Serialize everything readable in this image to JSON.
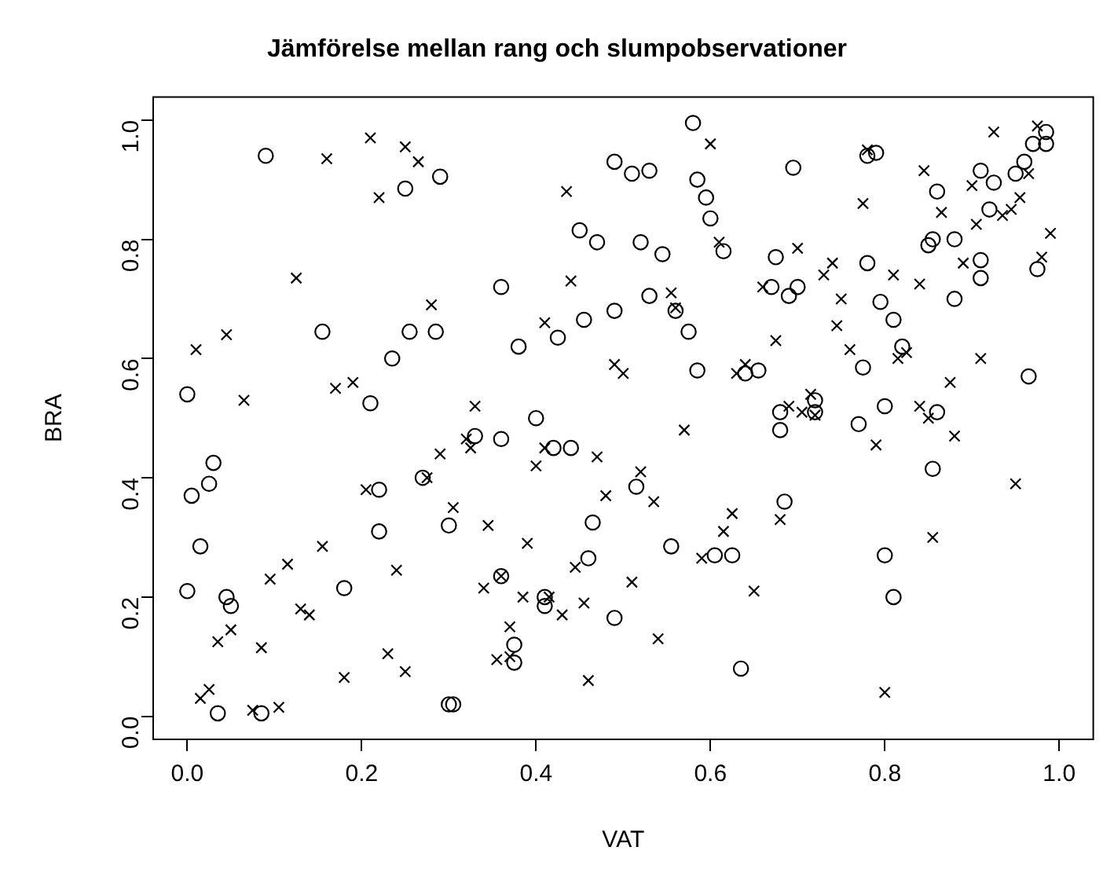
{
  "chart_data": {
    "type": "scatter",
    "title": "Jämförelse mellan rang och slumpobservationer",
    "xlabel": "VAT",
    "ylabel": "BRA",
    "xlim": [
      -0.04,
      1.04
    ],
    "ylim": [
      -0.04,
      1.04
    ],
    "xticks": [
      {
        "value": 0,
        "label": "0.0"
      },
      0.2,
      0.4,
      0.6,
      0.8,
      {
        "value": 1,
        "label": "1.0"
      }
    ],
    "yticks": [
      {
        "value": 0,
        "label": "0.0"
      },
      0.2,
      0.4,
      0.6,
      0.8,
      {
        "value": 1,
        "label": "1.0"
      }
    ],
    "grid": false,
    "legend": false,
    "series": [
      {
        "color": "#000000",
        "marker": "circle",
        "x": [
          0.0,
          0.0,
          0.005,
          0.015,
          0.025,
          0.03,
          0.035,
          0.045,
          0.05,
          0.085,
          0.09,
          0.155,
          0.18,
          0.21,
          0.22,
          0.22,
          0.235,
          0.25,
          0.255,
          0.27,
          0.29,
          0.285,
          0.3,
          0.3,
          0.305,
          0.33,
          0.36,
          0.36,
          0.36,
          0.375,
          0.375,
          0.38,
          0.4,
          0.41,
          0.41,
          0.42,
          0.425,
          0.44,
          0.45,
          0.455,
          0.46,
          0.465,
          0.47,
          0.49,
          0.49,
          0.49,
          0.51,
          0.515,
          0.52,
          0.53,
          0.53,
          0.545,
          0.555,
          0.56,
          0.575,
          0.58,
          0.585,
          0.585,
          0.595,
          0.6,
          0.605,
          0.615,
          0.625,
          0.635,
          0.64,
          0.655,
          0.67,
          0.675,
          0.68,
          0.68,
          0.685,
          0.69,
          0.695,
          0.7,
          0.72,
          0.72,
          0.77,
          0.775,
          0.78,
          0.78,
          0.79,
          0.795,
          0.8,
          0.81,
          0.8,
          0.81,
          0.82,
          0.85,
          0.855,
          0.855,
          0.86,
          0.86,
          0.88,
          0.88,
          0.91,
          0.91,
          0.91,
          0.92,
          0.925,
          0.95,
          0.96,
          0.965,
          0.97,
          0.975,
          0.985,
          0.985
        ],
        "values": [
          0.21,
          0.54,
          0.37,
          0.285,
          0.39,
          0.425,
          0.005,
          0.2,
          0.185,
          0.005,
          0.94,
          0.645,
          0.215,
          0.525,
          0.38,
          0.31,
          0.6,
          0.885,
          0.645,
          0.4,
          0.905,
          0.645,
          0.32,
          0.02,
          0.02,
          0.47,
          0.72,
          0.235,
          0.465,
          0.12,
          0.09,
          0.62,
          0.5,
          0.2,
          0.185,
          0.45,
          0.635,
          0.45,
          0.815,
          0.665,
          0.265,
          0.325,
          0.795,
          0.93,
          0.165,
          0.68,
          0.91,
          0.385,
          0.795,
          0.705,
          0.915,
          0.775,
          0.285,
          0.68,
          0.645,
          0.995,
          0.58,
          0.9,
          0.87,
          0.835,
          0.27,
          0.78,
          0.27,
          0.08,
          0.575,
          0.58,
          0.72,
          0.77,
          0.51,
          0.48,
          0.36,
          0.705,
          0.92,
          0.72,
          0.51,
          0.53,
          0.49,
          0.585,
          0.76,
          0.94,
          0.945,
          0.695,
          0.27,
          0.2,
          0.52,
          0.665,
          0.62,
          0.79,
          0.8,
          0.415,
          0.51,
          0.88,
          0.7,
          0.8,
          0.735,
          0.765,
          0.915,
          0.85,
          0.895,
          0.91,
          0.93,
          0.57,
          0.96,
          0.75,
          0.96,
          0.98
        ]
      },
      {
        "color": "#000000",
        "marker": "cross",
        "x": [
          0.01,
          0.015,
          0.025,
          0.035,
          0.045,
          0.05,
          0.065,
          0.075,
          0.085,
          0.095,
          0.105,
          0.115,
          0.125,
          0.13,
          0.14,
          0.155,
          0.16,
          0.17,
          0.18,
          0.19,
          0.205,
          0.21,
          0.22,
          0.23,
          0.24,
          0.25,
          0.25,
          0.265,
          0.275,
          0.28,
          0.29,
          0.305,
          0.32,
          0.325,
          0.33,
          0.34,
          0.345,
          0.355,
          0.36,
          0.37,
          0.37,
          0.385,
          0.39,
          0.4,
          0.41,
          0.41,
          0.415,
          0.43,
          0.435,
          0.44,
          0.445,
          0.455,
          0.46,
          0.47,
          0.48,
          0.49,
          0.5,
          0.51,
          0.52,
          0.535,
          0.54,
          0.555,
          0.56,
          0.57,
          0.59,
          0.6,
          0.61,
          0.615,
          0.625,
          0.63,
          0.64,
          0.65,
          0.66,
          0.675,
          0.68,
          0.69,
          0.7,
          0.705,
          0.715,
          0.72,
          0.73,
          0.74,
          0.745,
          0.75,
          0.76,
          0.775,
          0.78,
          0.79,
          0.8,
          0.81,
          0.815,
          0.825,
          0.84,
          0.84,
          0.845,
          0.85,
          0.855,
          0.865,
          0.875,
          0.88,
          0.89,
          0.9,
          0.905,
          0.91,
          0.925,
          0.935,
          0.945,
          0.95,
          0.955,
          0.965,
          0.975,
          0.98,
          0.99
        ],
        "values": [
          0.615,
          0.03,
          0.045,
          0.125,
          0.64,
          0.145,
          0.53,
          0.01,
          0.115,
          0.23,
          0.015,
          0.255,
          0.735,
          0.18,
          0.17,
          0.285,
          0.935,
          0.55,
          0.065,
          0.56,
          0.38,
          0.97,
          0.87,
          0.105,
          0.245,
          0.075,
          0.955,
          0.93,
          0.4,
          0.69,
          0.44,
          0.35,
          0.465,
          0.45,
          0.52,
          0.215,
          0.32,
          0.095,
          0.235,
          0.15,
          0.1,
          0.2,
          0.29,
          0.42,
          0.66,
          0.45,
          0.2,
          0.17,
          0.88,
          0.73,
          0.25,
          0.19,
          0.06,
          0.435,
          0.37,
          0.59,
          0.575,
          0.225,
          0.41,
          0.36,
          0.13,
          0.71,
          0.685,
          0.48,
          0.265,
          0.96,
          0.795,
          0.31,
          0.34,
          0.575,
          0.59,
          0.21,
          0.72,
          0.63,
          0.33,
          0.52,
          0.785,
          0.51,
          0.54,
          0.505,
          0.74,
          0.76,
          0.655,
          0.7,
          0.615,
          0.86,
          0.95,
          0.455,
          0.04,
          0.74,
          0.6,
          0.61,
          0.52,
          0.725,
          0.915,
          0.5,
          0.3,
          0.845,
          0.56,
          0.47,
          0.76,
          0.89,
          0.825,
          0.6,
          0.98,
          0.84,
          0.85,
          0.39,
          0.87,
          0.91,
          0.99,
          0.77,
          0.81
        ]
      }
    ]
  }
}
